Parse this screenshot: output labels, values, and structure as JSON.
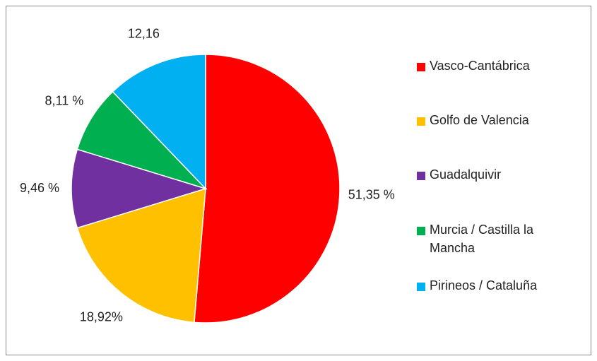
{
  "chart_data": {
    "type": "pie",
    "categories": [
      "Vasco-Cantábrica",
      "Golfo de Valencia",
      "Guadalquivir",
      "Murcia / Castilla la Mancha",
      "Pirineos / Cataluña"
    ],
    "values": [
      51.35,
      18.92,
      9.46,
      8.11,
      12.16
    ],
    "value_labels": [
      "51,35 %",
      "18,92%",
      "9,46 %",
      "8,11 %",
      "12,16"
    ],
    "colors": [
      "#ff0000",
      "#ffc000",
      "#7030a0",
      "#00b050",
      "#00b0f0"
    ],
    "legend": "right"
  }
}
